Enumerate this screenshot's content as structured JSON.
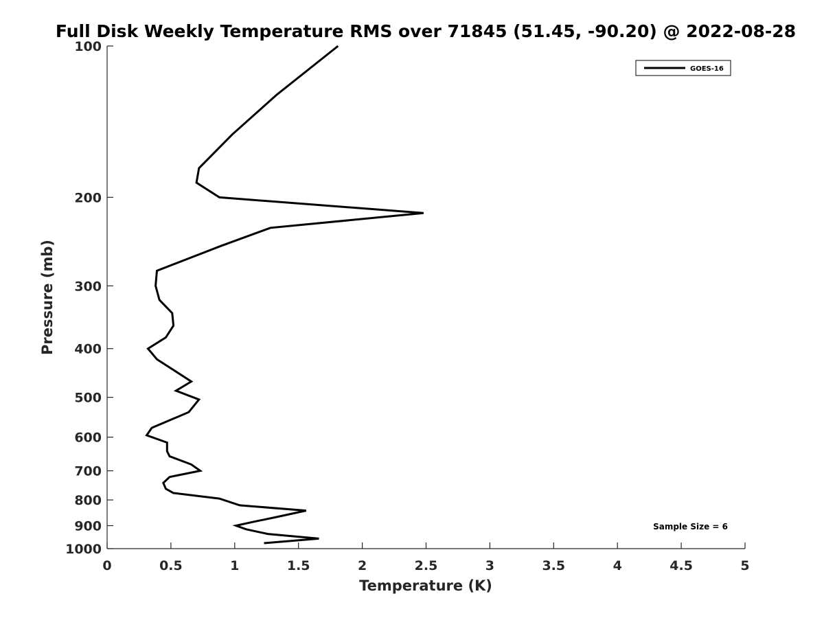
{
  "chart_data": {
    "type": "line",
    "title": "Full Disk Weekly Temperature RMS over 71845 (51.45, -90.20) @ 2022-08-28",
    "xlabel": "Temperature (K)",
    "ylabel": "Pressure (mb)",
    "xlim": [
      0,
      5
    ],
    "ylim": [
      100,
      1000
    ],
    "yscale": "log",
    "y_reversed": true,
    "grid": false,
    "legend_position": "top-right",
    "x_ticks": [
      {
        "value": 0,
        "label": "0"
      },
      {
        "value": 0.5,
        "label": "0.5"
      },
      {
        "value": 1,
        "label": "1"
      },
      {
        "value": 1.5,
        "label": "1.5"
      },
      {
        "value": 2,
        "label": "2"
      },
      {
        "value": 2.5,
        "label": "2.5"
      },
      {
        "value": 3,
        "label": "3"
      },
      {
        "value": 3.5,
        "label": "3.5"
      },
      {
        "value": 4,
        "label": "4"
      },
      {
        "value": 4.5,
        "label": "4.5"
      },
      {
        "value": 5,
        "label": "5"
      }
    ],
    "y_ticks": [
      {
        "value": 100,
        "label": "100"
      },
      {
        "value": 200,
        "label": "200"
      },
      {
        "value": 300,
        "label": "300"
      },
      {
        "value": 400,
        "label": "400"
      },
      {
        "value": 500,
        "label": "500"
      },
      {
        "value": 600,
        "label": "600"
      },
      {
        "value": 700,
        "label": "700"
      },
      {
        "value": 800,
        "label": "800"
      },
      {
        "value": 900,
        "label": "900"
      },
      {
        "value": 1000,
        "label": "1000"
      }
    ],
    "series": [
      {
        "name": "GOES-16",
        "color": "#000000",
        "x": [
          1.81,
          1.33,
          0.98,
          0.72,
          0.7,
          0.88,
          2.48,
          1.28,
          0.89,
          0.39,
          0.38,
          0.41,
          0.51,
          0.52,
          0.46,
          0.32,
          0.39,
          0.66,
          0.54,
          0.72,
          0.64,
          0.35,
          0.31,
          0.47,
          0.47,
          0.49,
          0.66,
          0.73,
          0.49,
          0.44,
          0.46,
          0.52,
          0.88,
          1.04,
          1.56,
          1.33,
          1.14,
          1.01,
          1.09,
          1.26,
          1.66,
          1.23
        ],
        "y": [
          100,
          125,
          150,
          175,
          187,
          200,
          215,
          230,
          250,
          280,
          300,
          320,
          340,
          360,
          380,
          400,
          420,
          465,
          485,
          505,
          535,
          575,
          595,
          615,
          640,
          655,
          680,
          700,
          720,
          740,
          760,
          775,
          795,
          820,
          840,
          865,
          885,
          900,
          915,
          935,
          955,
          975
        ]
      }
    ]
  },
  "legend": {
    "entries": [
      "GOES-16"
    ]
  },
  "annotation": {
    "text": "Sample Size = 6"
  }
}
